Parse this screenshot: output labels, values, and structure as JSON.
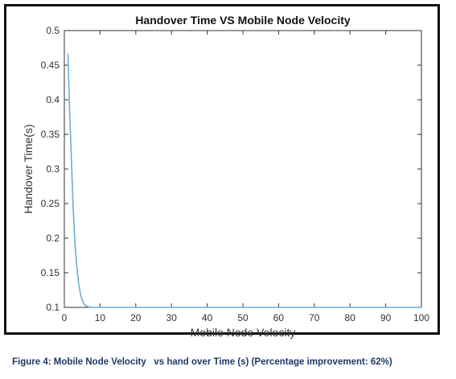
{
  "chart_data": {
    "type": "line",
    "title": "Handover Time VS Mobile Node Velocity",
    "xlabel": "Mobile Node Velocity",
    "ylabel": "Handover Time(s)",
    "xlim": [
      0,
      100
    ],
    "ylim": [
      0.1,
      0.5
    ],
    "xticks": [
      0,
      10,
      20,
      30,
      40,
      50,
      60,
      70,
      80,
      90,
      100
    ],
    "yticks": [
      0.1,
      0.15,
      0.2,
      0.25,
      0.3,
      0.35,
      0.4,
      0.45,
      0.5
    ],
    "xtick_labels": [
      "0",
      "10",
      "20",
      "30",
      "40",
      "50",
      "60",
      "70",
      "80",
      "90",
      "100"
    ],
    "ytick_labels": [
      "0.1",
      "0.15",
      "0.2",
      "0.25",
      "0.3",
      "0.35",
      "0.4",
      "0.45",
      "0.5"
    ],
    "grid": false,
    "line_color": "#6aaed6",
    "series": [
      {
        "x": [
          1,
          1.5,
          2,
          2.5,
          3,
          3.5,
          4,
          4.5,
          5,
          5.5,
          6,
          7,
          8,
          10,
          20,
          30,
          40,
          50,
          60,
          70,
          80,
          90,
          100
        ],
        "values": [
          0.467,
          0.38,
          0.31,
          0.24,
          0.19,
          0.158,
          0.135,
          0.12,
          0.11,
          0.105,
          0.102,
          0.1005,
          0.1,
          0.1,
          0.1,
          0.1,
          0.1,
          0.1,
          0.1,
          0.1,
          0.1,
          0.1,
          0.1
        ]
      }
    ]
  },
  "caption": "Figure 4: Mobile Node Velocity   vs hand over Time (s) (Percentage improvement: 62%)"
}
